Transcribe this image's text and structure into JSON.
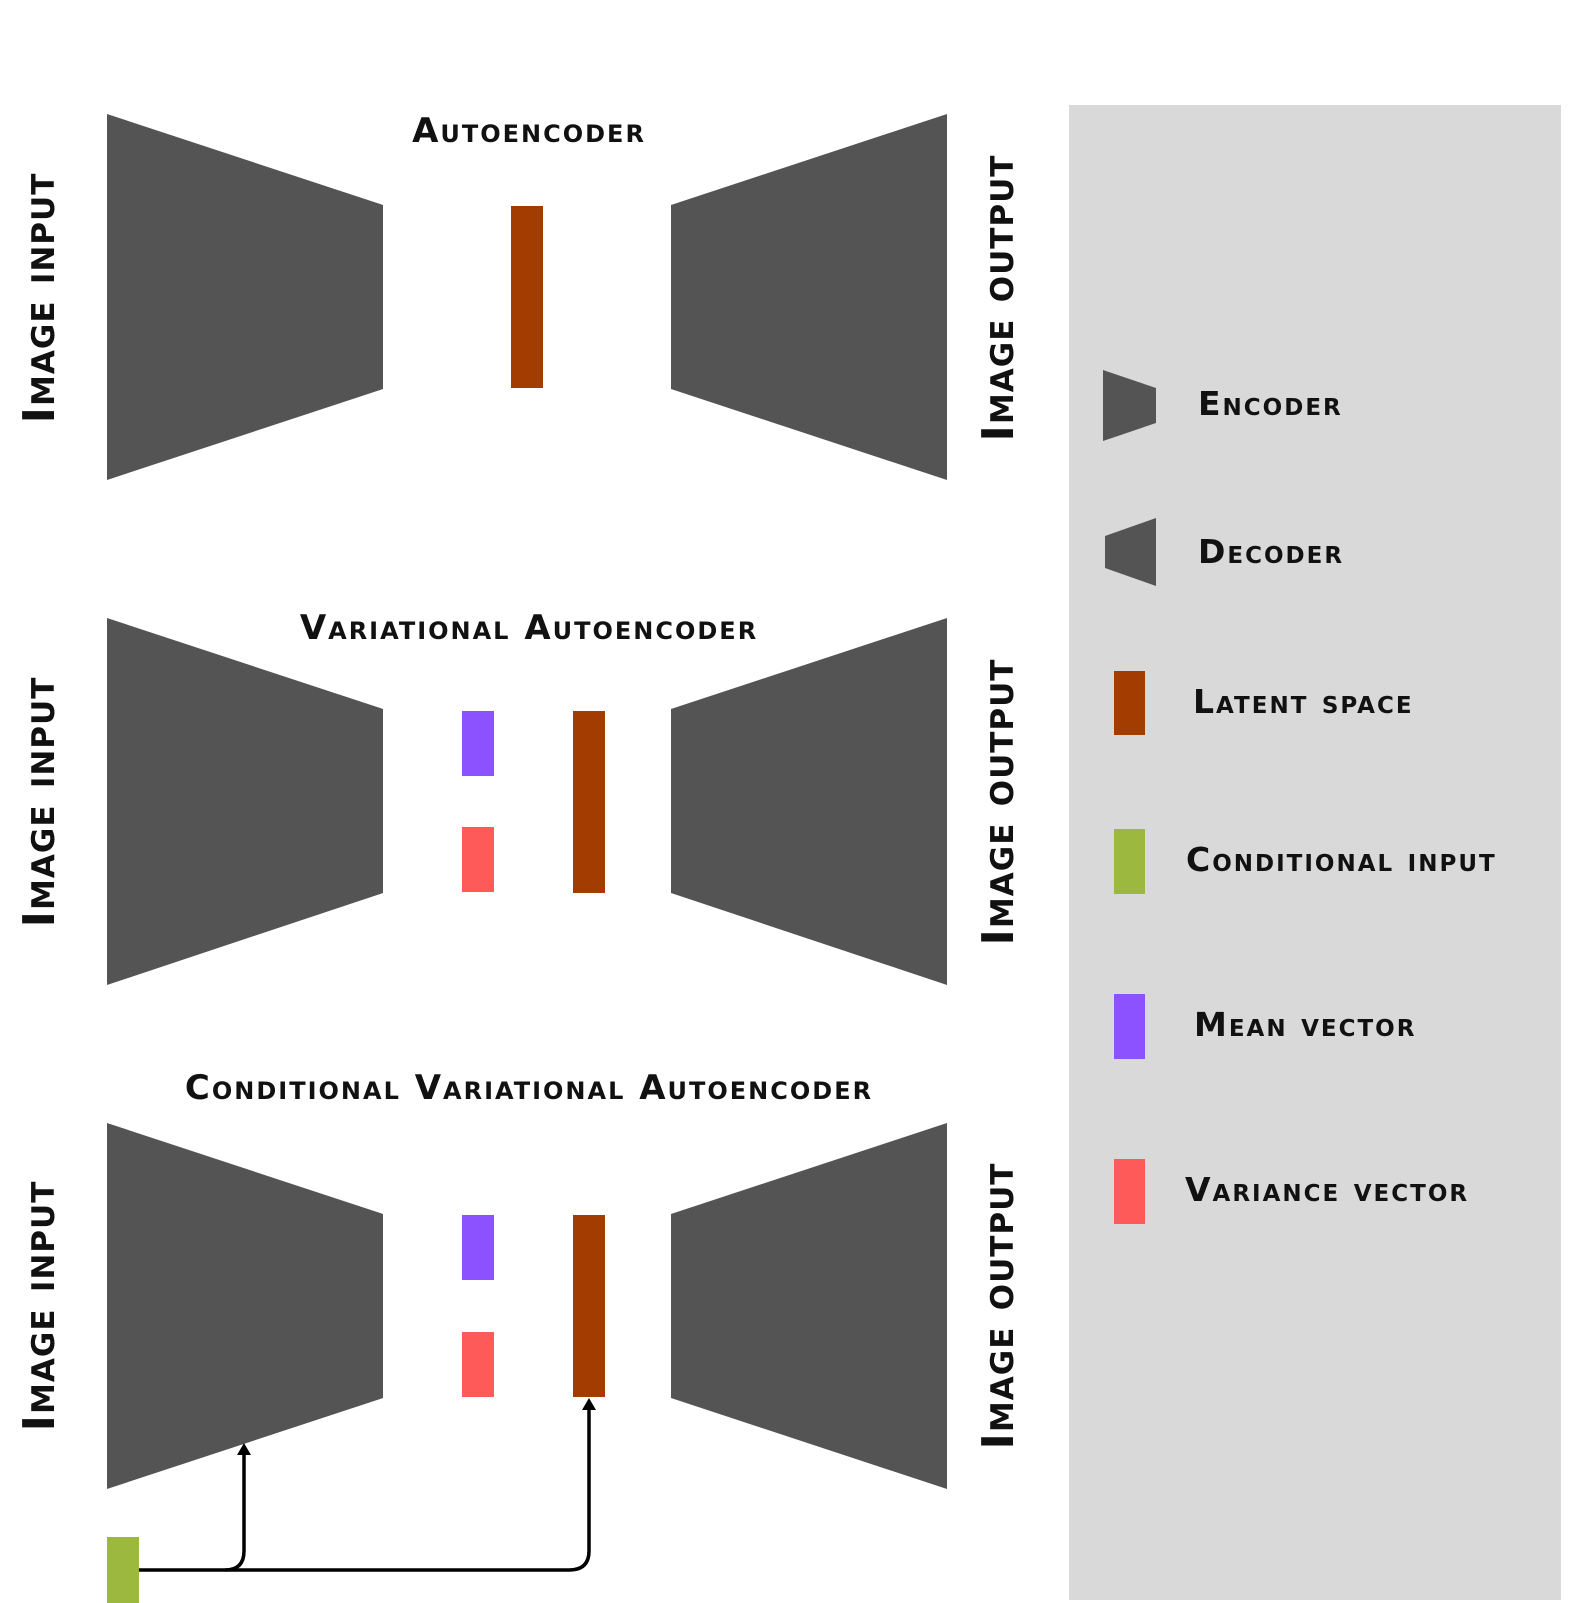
{
  "colors": {
    "block": "#545454",
    "latent": "#a33c00",
    "mean": "#8c52ff",
    "variance": "#ff5a5a",
    "conditional": "#9cb83e",
    "legend_bg": "#d9d9d9",
    "arrow": "#000000"
  },
  "panels": [
    {
      "title": "Autoencoder",
      "input_label": "Image input",
      "output_label": "Image output"
    },
    {
      "title": "Variational Autoencoder",
      "input_label": "Image input",
      "output_label": "Image output"
    },
    {
      "title": "Conditional Variational Autoencoder",
      "input_label": "Image input",
      "output_label": "Image output"
    }
  ],
  "legend": {
    "items": [
      {
        "label": "Encoder",
        "icon": "encoder-icon"
      },
      {
        "label": "Decoder",
        "icon": "decoder-icon"
      },
      {
        "label": "Latent space",
        "icon": "latent-space-icon"
      },
      {
        "label": "Conditional input",
        "icon": "conditional-input-icon"
      },
      {
        "label": "Mean vector",
        "icon": "mean-vector-icon"
      },
      {
        "label": "Variance vector",
        "icon": "variance-vector-icon"
      }
    ]
  }
}
